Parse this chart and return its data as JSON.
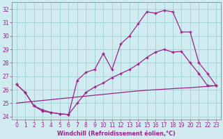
{
  "xlabel": "Windchill (Refroidissement éolien,°C)",
  "ylabel": "",
  "xlim": [
    -0.5,
    23.5
  ],
  "ylim": [
    23.8,
    32.5
  ],
  "xticks": [
    0,
    1,
    2,
    3,
    4,
    5,
    6,
    7,
    8,
    9,
    10,
    11,
    12,
    13,
    14,
    15,
    16,
    17,
    18,
    19,
    20,
    21,
    22,
    23
  ],
  "yticks": [
    24,
    25,
    26,
    27,
    28,
    29,
    30,
    31,
    32
  ],
  "bg_color": "#d0ecf0",
  "line_color": "#992288",
  "grid_color": "#a8d4d8",
  "line1_y": [
    26.4,
    25.8,
    24.8,
    24.4,
    24.3,
    24.2,
    24.15,
    26.7,
    27.3,
    27.5,
    28.7,
    27.5,
    29.4,
    30.0,
    30.9,
    31.8,
    31.7,
    31.9,
    31.8,
    30.3,
    30.3,
    28.0,
    27.2,
    26.3
  ],
  "line2_y": [
    26.4,
    25.8,
    24.8,
    24.5,
    24.3,
    24.2,
    24.15,
    25.0,
    25.8,
    26.2,
    26.5,
    26.9,
    27.2,
    27.5,
    27.9,
    28.4,
    28.8,
    29.0,
    28.8,
    28.85,
    28.0,
    27.2,
    26.3,
    26.3
  ],
  "line3_y": [
    25.0,
    25.07,
    25.13,
    25.2,
    25.26,
    25.33,
    25.39,
    25.46,
    25.52,
    25.59,
    25.65,
    25.72,
    25.78,
    25.85,
    25.91,
    25.96,
    26.0,
    26.04,
    26.08,
    26.12,
    26.15,
    26.2,
    26.25,
    26.3
  ]
}
